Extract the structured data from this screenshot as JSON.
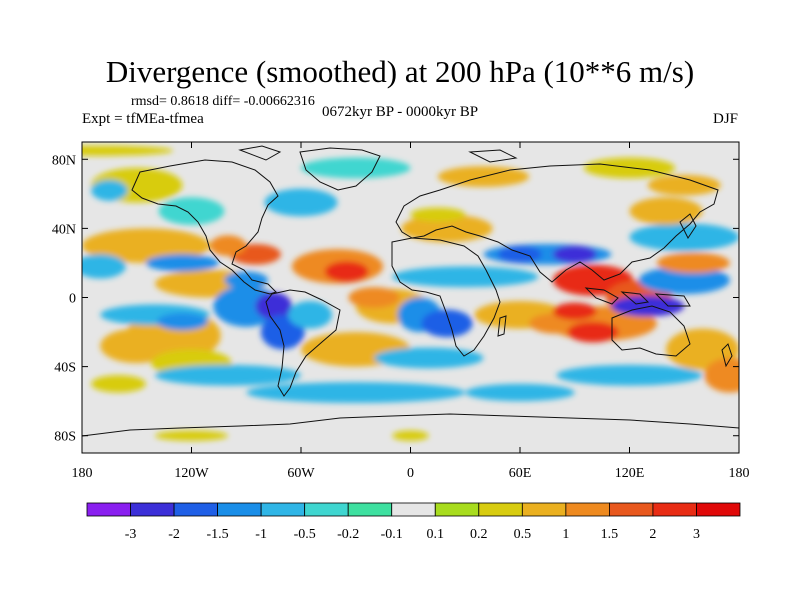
{
  "title": "Divergence (smoothed) at 200 hPa (10**6 m/s)",
  "stats_text": "rmsd= 0.8618 diff= -0.00662316",
  "left_label": "Expt = tfMEa-tfmea",
  "center_label": "0672kyr BP - 0000kyr BP",
  "right_label": "DJF",
  "chart_data": {
    "type": "heatmap",
    "title": "Divergence (smoothed) at 200 hPa (10**6 m/s)",
    "x_ticks": [
      "180",
      "120W",
      "60W",
      "0",
      "60E",
      "120E",
      "180"
    ],
    "x_tick_values": [
      -180,
      -120,
      -60,
      0,
      60,
      120,
      180
    ],
    "y_ticks": [
      "80N",
      "40N",
      "0",
      "40S",
      "80S"
    ],
    "y_tick_values": [
      80,
      40,
      0,
      -40,
      -80
    ],
    "xlim": [
      -180,
      180
    ],
    "ylim": [
      -90,
      90
    ],
    "colorbar": {
      "labels": [
        "-3",
        "-2",
        "-1.5",
        "-1",
        "-0.5",
        "-0.2",
        "-0.1",
        "0.1",
        "0.2",
        "0.5",
        "1",
        "1.5",
        "2",
        "3"
      ],
      "colors": [
        "#8a1ff0",
        "#3c2fd8",
        "#1f5fe6",
        "#1a8ee8",
        "#2fb5e6",
        "#3fd6d0",
        "#3ee0a0",
        "#e6e6e6",
        "#a8dc1e",
        "#d8cc10",
        "#eab020",
        "#ee8a20",
        "#e8581e",
        "#e82c14",
        "#e00808"
      ]
    }
  }
}
